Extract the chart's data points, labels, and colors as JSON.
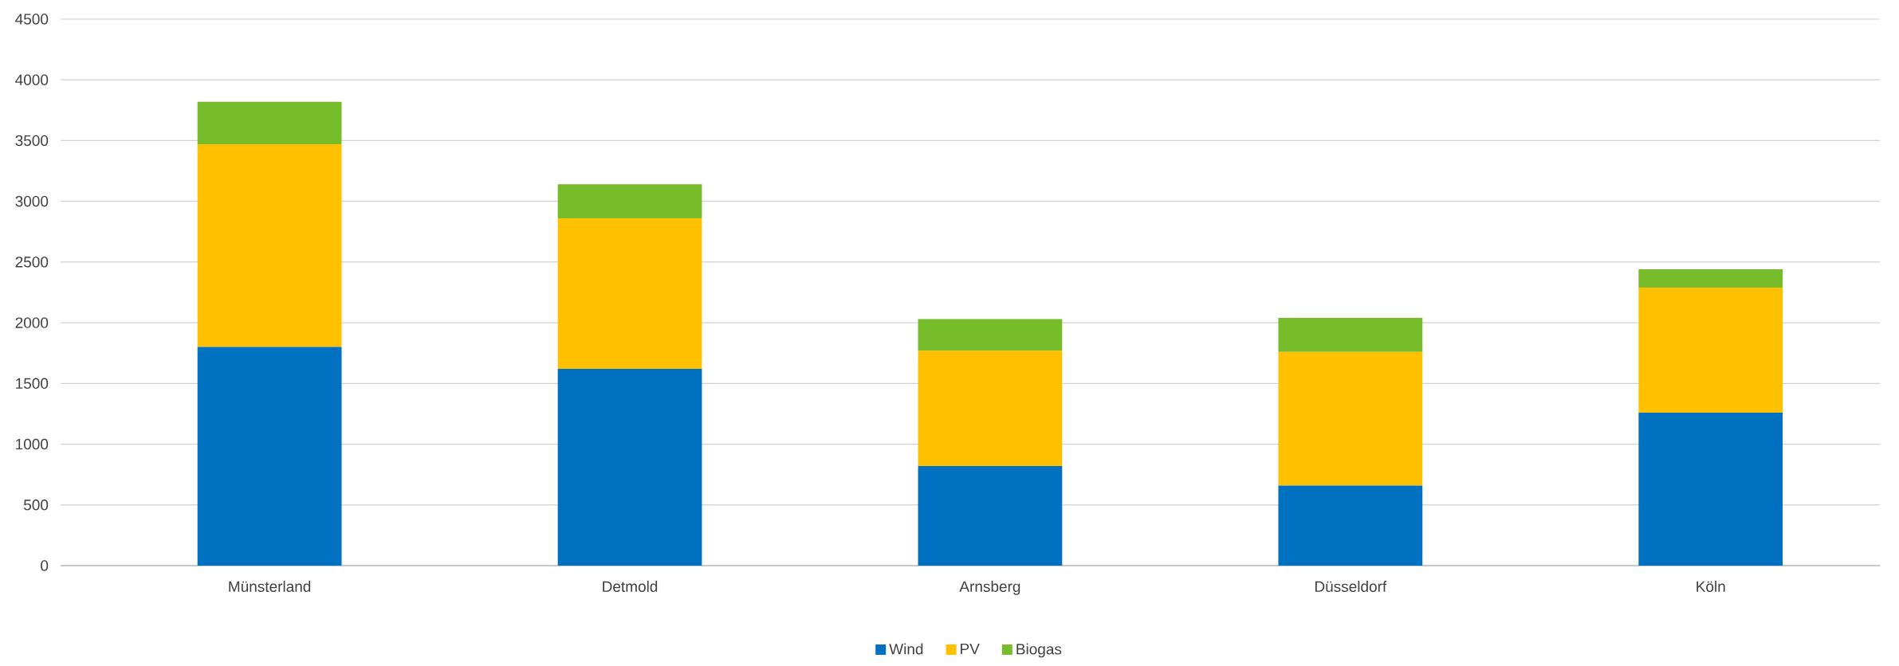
{
  "chart_data": {
    "type": "bar",
    "stacked": true,
    "categories": [
      "Münsterland",
      "Detmold",
      "Arnsberg",
      "Düsseldorf",
      "Köln"
    ],
    "series": [
      {
        "name": "Wind",
        "color": "#0070c0",
        "values": [
          1800,
          1620,
          820,
          660,
          1260
        ]
      },
      {
        "name": "PV",
        "color": "#ffc000",
        "values": [
          1670,
          1240,
          950,
          1100,
          1030
        ]
      },
      {
        "name": "Biogas",
        "color": "#77bc2b",
        "values": [
          350,
          280,
          260,
          280,
          150
        ]
      }
    ],
    "ylim": [
      0,
      4500
    ],
    "yticks": [
      0,
      500,
      1000,
      1500,
      2000,
      2500,
      3000,
      3500,
      4000,
      4500
    ],
    "grid": "y",
    "legend": "bottom"
  }
}
